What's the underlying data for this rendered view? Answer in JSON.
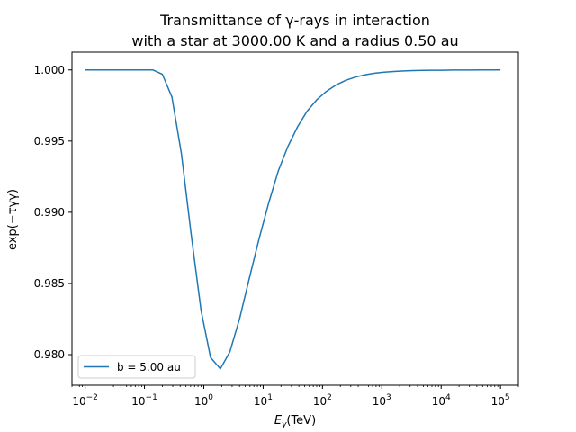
{
  "chart_data": {
    "type": "line",
    "title": [
      "Transmittance of γ-rays in interaction",
      "with a star at 3000.00 K and a radius 0.50 au"
    ],
    "xlabel": {
      "main": "E",
      "sub": "γ",
      "unit": "(TeV)"
    },
    "ylabel": "exp(−τγγ)",
    "xscale": "log",
    "xlim": [
      0.006,
      200000
    ],
    "ylim": [
      0.97785,
      1.00125
    ],
    "xticks": [
      {
        "value": 0.01,
        "base": "10",
        "exp": "−2"
      },
      {
        "value": 0.1,
        "base": "10",
        "exp": "−1"
      },
      {
        "value": 1,
        "base": "10",
        "exp": "0"
      },
      {
        "value": 10,
        "base": "10",
        "exp": "1"
      },
      {
        "value": 100,
        "base": "10",
        "exp": "2"
      },
      {
        "value": 1000,
        "base": "10",
        "exp": "3"
      },
      {
        "value": 10000,
        "base": "10",
        "exp": "4"
      },
      {
        "value": 100000,
        "base": "10",
        "exp": "5"
      }
    ],
    "yticks": [
      {
        "value": 0.98,
        "label": "0.980"
      },
      {
        "value": 0.985,
        "label": "0.985"
      },
      {
        "value": 0.99,
        "label": "0.990"
      },
      {
        "value": 0.995,
        "label": "0.995"
      },
      {
        "value": 1.0,
        "label": "1.000"
      }
    ],
    "legend": {
      "placement": "lower-left"
    },
    "color": "#1f77b4",
    "series": [
      {
        "name": "b = 5.00 au",
        "x": [
          0.01,
          0.0146,
          0.0212,
          0.031,
          0.045,
          0.0655,
          0.0955,
          0.139,
          0.2,
          0.29,
          0.42,
          0.61,
          0.9,
          1.3,
          1.9,
          2.75,
          4.0,
          5.8,
          8.5,
          12.3,
          18,
          26,
          38,
          55,
          80,
          117,
          170,
          250,
          360,
          525,
          760,
          1100,
          1600,
          2350,
          3400,
          5000,
          7300,
          10600,
          15400,
          22500,
          32700,
          47600,
          69300,
          100000
        ],
        "y": [
          1.0,
          1.0,
          1.0,
          1.0,
          1.0,
          1.0,
          1.0,
          1.0,
          0.9997,
          0.9981,
          0.9941,
          0.9885,
          0.9831,
          0.9798,
          0.979,
          0.9802,
          0.9825,
          0.9853,
          0.9881,
          0.9906,
          0.9929,
          0.9946,
          0.996,
          0.9971,
          0.9979,
          0.9985,
          0.99895,
          0.99928,
          0.9995,
          0.99966,
          0.99977,
          0.99984,
          0.99989,
          0.99993,
          0.99995,
          0.99997,
          0.99998,
          0.99998,
          0.99999,
          0.99999,
          0.99999,
          1.0,
          1.0,
          1.0
        ]
      }
    ]
  }
}
